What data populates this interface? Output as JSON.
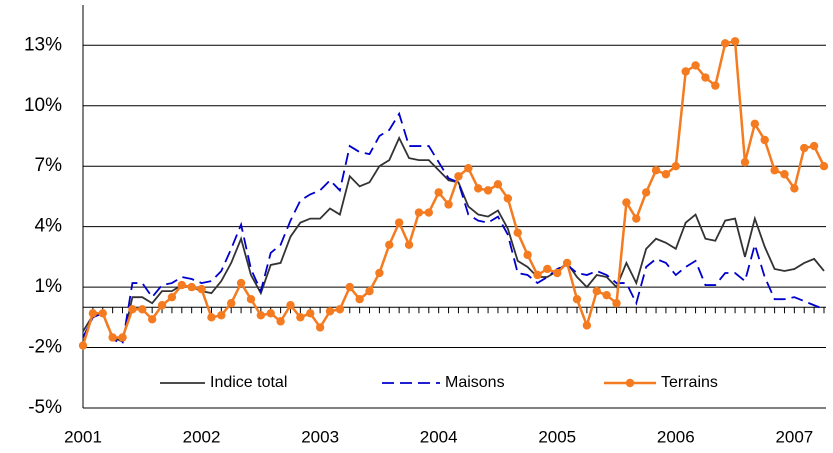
{
  "chart_data": {
    "type": "line",
    "categories": [
      "2001",
      null,
      null,
      null,
      null,
      null,
      null,
      null,
      null,
      null,
      null,
      null,
      "2002",
      null,
      null,
      null,
      null,
      null,
      null,
      null,
      null,
      null,
      null,
      null,
      "2003",
      null,
      null,
      null,
      null,
      null,
      null,
      null,
      null,
      null,
      null,
      null,
      "2004",
      null,
      null,
      null,
      null,
      null,
      null,
      null,
      null,
      null,
      null,
      null,
      "2005",
      null,
      null,
      null,
      null,
      null,
      null,
      null,
      null,
      null,
      null,
      null,
      "2006",
      null,
      null,
      null,
      null,
      null,
      null,
      null,
      null,
      null,
      null,
      null,
      "2007",
      null,
      null,
      null
    ],
    "series": [
      {
        "name": "Indice total",
        "color": "#333333",
        "dashed": false,
        "markers": false,
        "values": [
          -1.2,
          -0.4,
          -0.3,
          -1.5,
          -1.7,
          0.5,
          0.5,
          0.2,
          0.8,
          0.8,
          1.1,
          1.0,
          0.8,
          0.7,
          1.3,
          2.2,
          3.4,
          1.6,
          0.7,
          2.1,
          2.2,
          3.5,
          4.2,
          4.4,
          4.4,
          4.9,
          4.6,
          6.5,
          6.0,
          6.2,
          7.0,
          7.3,
          8.4,
          7.4,
          7.3,
          7.3,
          6.8,
          6.3,
          6.2,
          5.0,
          4.6,
          4.5,
          4.8,
          3.9,
          2.3,
          2.0,
          1.5,
          1.5,
          1.8,
          2.2,
          1.5,
          1.0,
          1.6,
          1.5,
          1.0,
          2.2,
          1.2,
          2.9,
          3.4,
          3.2,
          2.9,
          4.2,
          4.6,
          3.4,
          3.3,
          4.3,
          4.4,
          2.5,
          4.4,
          3.0,
          1.9,
          1.8,
          1.9,
          2.2,
          2.4,
          1.8
        ]
      },
      {
        "name": "Maisons",
        "color": "#0000cc",
        "dashed": true,
        "markers": false,
        "values": [
          -1.5,
          -0.5,
          -0.3,
          -1.6,
          -1.8,
          1.2,
          1.2,
          0.5,
          1.1,
          1.2,
          1.5,
          1.4,
          1.2,
          1.3,
          1.8,
          2.9,
          4.1,
          1.9,
          0.8,
          2.7,
          3.1,
          4.3,
          5.3,
          5.6,
          5.8,
          6.3,
          5.8,
          8.0,
          7.7,
          7.6,
          8.5,
          8.8,
          9.6,
          8.0,
          8.0,
          8.0,
          7.2,
          6.4,
          6.2,
          4.6,
          4.3,
          4.2,
          4.5,
          3.6,
          1.7,
          1.6,
          1.2,
          1.5,
          1.9,
          2.1,
          1.7,
          1.6,
          1.8,
          1.6,
          1.2,
          1.2,
          0.2,
          2.0,
          2.4,
          2.2,
          1.6,
          2.0,
          2.3,
          1.1,
          1.1,
          1.7,
          1.7,
          1.3,
          3.1,
          1.5,
          0.4,
          0.4,
          0.5,
          0.3,
          0.1,
          -0.1
        ]
      },
      {
        "name": "Terrains",
        "color": "#f47b20",
        "dashed": false,
        "markers": true,
        "values": [
          -1.9,
          -0.3,
          -0.3,
          -1.5,
          -1.5,
          -0.1,
          -0.1,
          -0.6,
          0.1,
          0.5,
          1.1,
          1.0,
          0.9,
          -0.5,
          -0.4,
          0.2,
          1.2,
          0.4,
          -0.4,
          -0.3,
          -0.7,
          0.1,
          -0.5,
          -0.3,
          -1.0,
          -0.2,
          -0.1,
          1.0,
          0.4,
          0.8,
          1.7,
          3.1,
          4.2,
          3.1,
          4.7,
          4.7,
          5.7,
          5.1,
          6.5,
          6.9,
          5.9,
          5.8,
          6.1,
          5.4,
          3.7,
          2.6,
          1.6,
          1.9,
          1.7,
          2.2,
          0.4,
          -0.9,
          0.8,
          0.6,
          0.2,
          5.2,
          4.4,
          5.7,
          6.8,
          6.6,
          7.0,
          11.7,
          12.0,
          11.4,
          11.0,
          13.1,
          13.2,
          7.2,
          9.1,
          8.3,
          6.8,
          6.6,
          5.9,
          7.9,
          8.0,
          7.0
        ]
      }
    ],
    "ylim": [
      -5,
      15
    ],
    "yticks": [
      {
        "value": -5,
        "label": "-5%"
      },
      {
        "value": -2,
        "label": "-2%"
      },
      {
        "value": 1,
        "label": "1%"
      },
      {
        "value": 4,
        "label": "4%"
      },
      {
        "value": 7,
        "label": "7%"
      },
      {
        "value": 10,
        "label": "10%"
      },
      {
        "value": 13,
        "label": "13%"
      }
    ],
    "grid": true,
    "legend": "lower center"
  }
}
